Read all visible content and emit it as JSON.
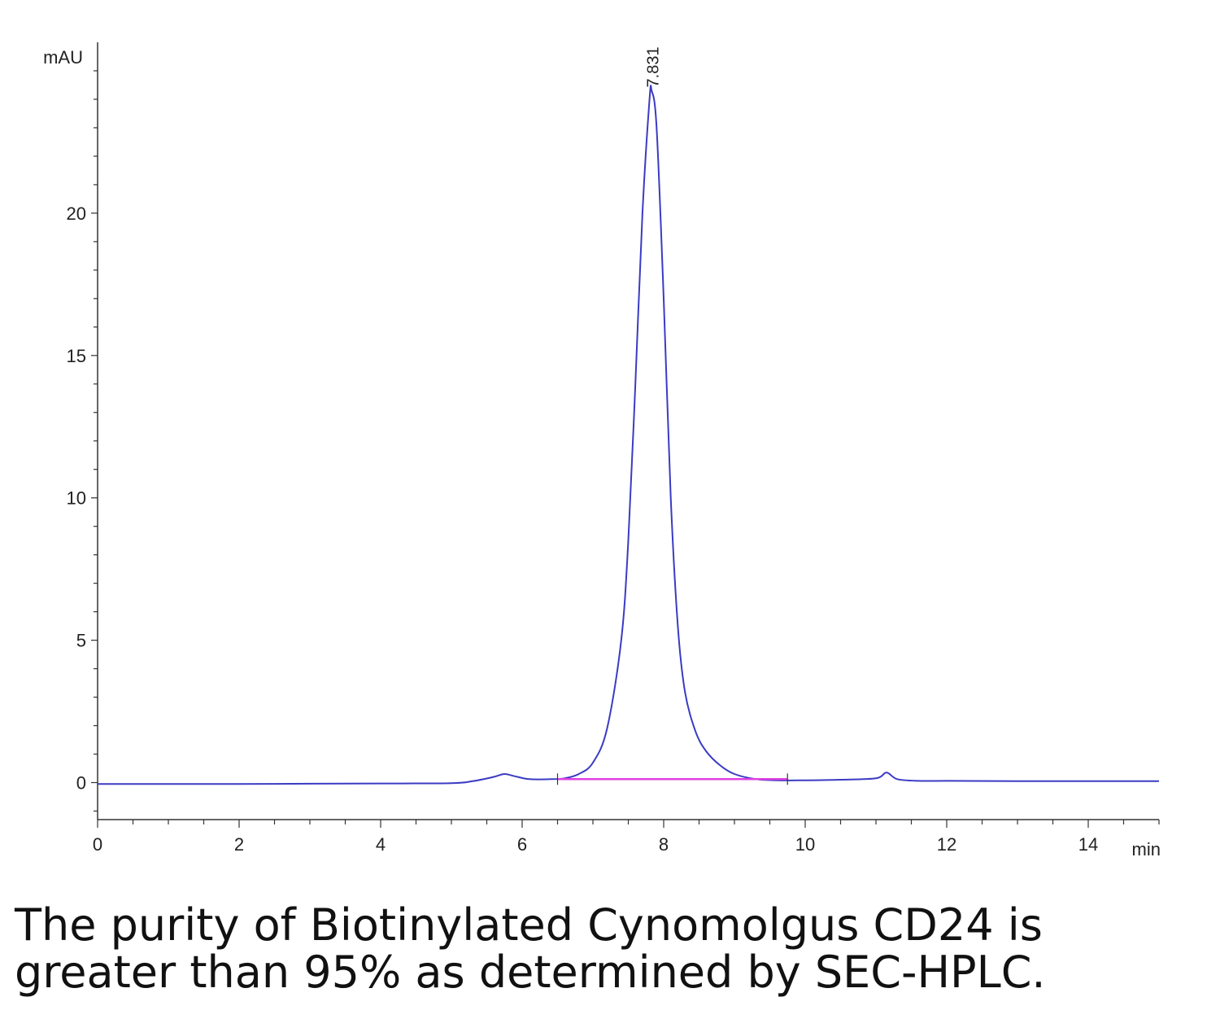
{
  "chart_data": {
    "type": "line",
    "ylabel": "mAU",
    "xlabel": "min",
    "xlim": [
      0,
      15
    ],
    "ylim": [
      -1.3,
      26
    ],
    "x_ticks": [
      0,
      2,
      4,
      6,
      8,
      10,
      12,
      14
    ],
    "y_ticks": [
      0,
      5,
      10,
      15,
      20
    ],
    "grid": false,
    "series": [
      {
        "color": "#3b3bc4",
        "x": [
          0,
          1,
          2,
          3,
          4,
          5,
          5.3,
          5.6,
          5.75,
          5.9,
          6.1,
          6.4,
          6.6,
          6.8,
          7.0,
          7.2,
          7.4,
          7.5,
          7.6,
          7.7,
          7.8,
          7.83,
          7.9,
          8.0,
          8.1,
          8.2,
          8.3,
          8.45,
          8.6,
          8.8,
          9.0,
          9.3,
          9.6,
          10.0,
          10.5,
          11.0,
          11.15,
          11.3,
          11.6,
          12,
          13,
          14,
          15
        ],
        "values": [
          -0.05,
          -0.05,
          -0.05,
          -0.04,
          -0.03,
          -0.02,
          0.05,
          0.2,
          0.3,
          0.22,
          0.12,
          0.12,
          0.15,
          0.3,
          0.7,
          1.9,
          5.0,
          8.5,
          14.0,
          20.0,
          24.0,
          24.3,
          23.0,
          17.0,
          10.0,
          5.5,
          3.2,
          1.8,
          1.1,
          0.6,
          0.3,
          0.12,
          0.08,
          0.08,
          0.1,
          0.15,
          0.35,
          0.12,
          0.06,
          0.06,
          0.05,
          0.05,
          0.05
        ]
      },
      {
        "color": "#e040e0",
        "x": [
          6.5,
          9.75
        ],
        "values": [
          0.12,
          0.12
        ]
      }
    ],
    "annotations": [
      {
        "text": "7.831",
        "x": 7.831,
        "y": 24.3
      }
    ]
  },
  "caption": {
    "line1": "The purity of Biotinylated Cynomolgus CD24 is",
    "line2": "greater than 95% as determined by SEC-HPLC."
  }
}
